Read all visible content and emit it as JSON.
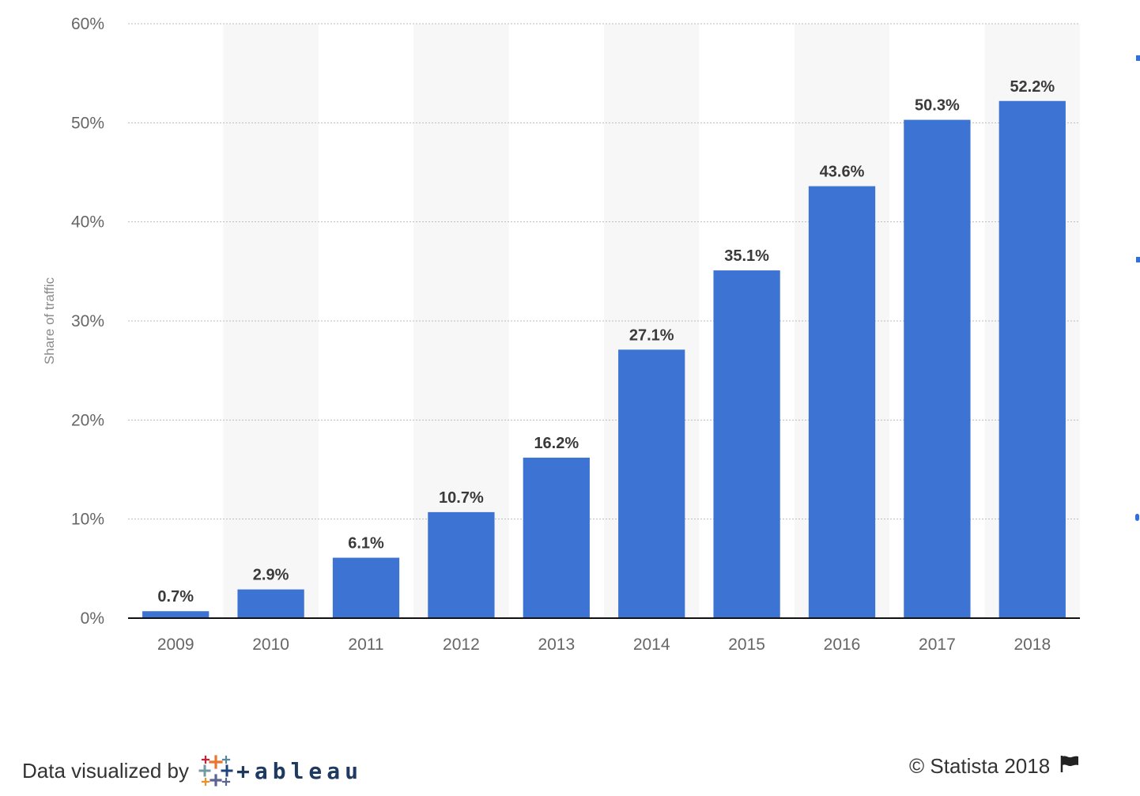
{
  "chart_data": {
    "type": "bar",
    "categories": [
      "2009",
      "2010",
      "2011",
      "2012",
      "2013",
      "2014",
      "2015",
      "2016",
      "2017",
      "2018"
    ],
    "values": [
      0.7,
      2.9,
      6.1,
      10.7,
      16.2,
      27.1,
      35.1,
      43.6,
      50.3,
      52.2
    ],
    "value_labels": [
      "0.7%",
      "2.9%",
      "6.1%",
      "10.7%",
      "16.2%",
      "27.1%",
      "35.1%",
      "43.6%",
      "50.3%",
      "52.2%"
    ],
    "yticks": [
      0,
      10,
      20,
      30,
      40,
      50,
      60
    ],
    "ytick_labels": [
      "0%",
      "10%",
      "20%",
      "30%",
      "40%",
      "50%",
      "60%"
    ],
    "ylim": [
      0,
      60
    ],
    "ylabel": "Share of traffic",
    "xlabel": "",
    "grid": true,
    "colors": {
      "bar": "#3d74d4",
      "band": "#f7f7f7",
      "grid": "#bbbbbb",
      "axis": "#111111"
    }
  },
  "footer": {
    "visualized_by": "Data visualized by",
    "tableau_word": "+ableau",
    "copyright": "© Statista 2018"
  },
  "icons": {
    "tableau": "tableau-logo-icon",
    "flag": "flag-icon"
  }
}
